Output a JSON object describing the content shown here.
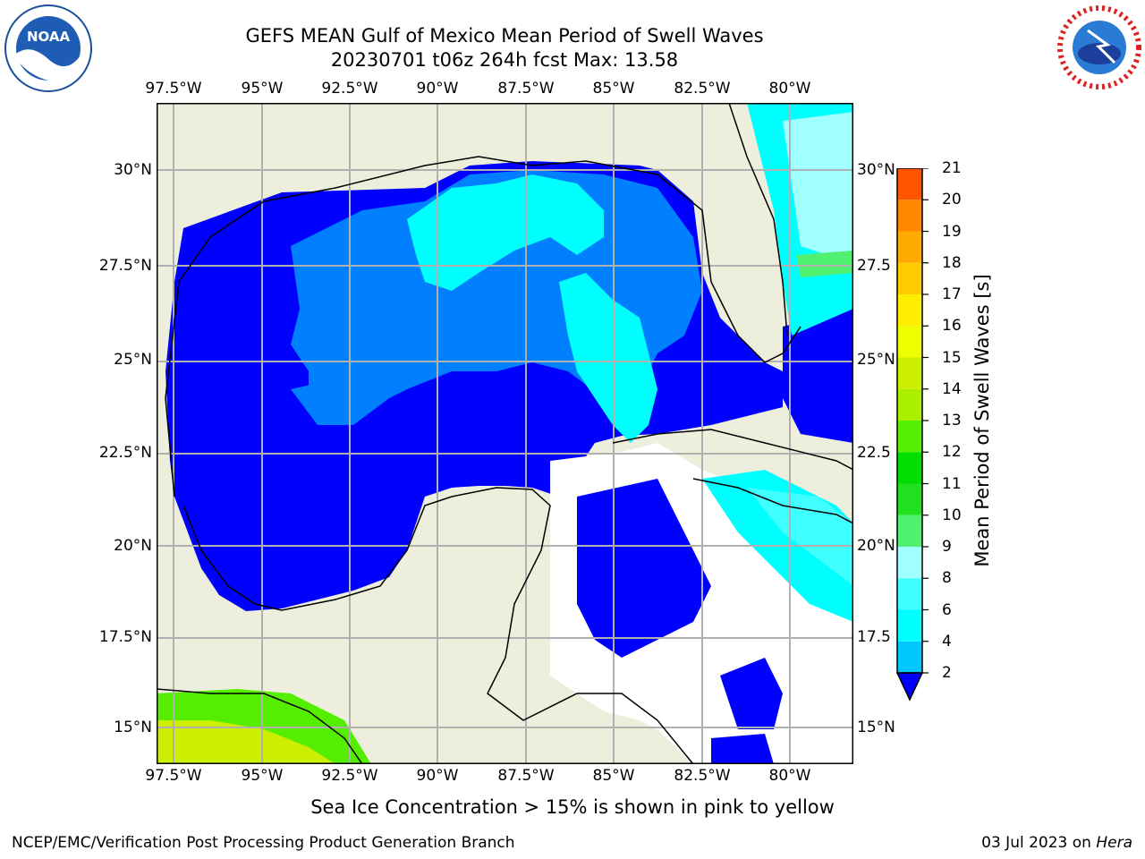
{
  "title": {
    "line1": "GEFS MEAN Gulf of Mexico Mean Period of Swell Waves",
    "line2": "20230701 t06z 264h fcst   Max: 13.58"
  },
  "map": {
    "lon_labels_top": [
      "97.5°W",
      "95°W",
      "92.5°W",
      "90°W",
      "87.5°W",
      "85°W",
      "82.5°W",
      "80°W"
    ],
    "lon_labels_bottom": [
      "97.5°W",
      "95°W",
      "92.5°W",
      "90°W",
      "87.5°W",
      "85°W",
      "82.5°W",
      "80°W"
    ],
    "lat_labels_left": [
      "30°N",
      "27.5°N",
      "25°N",
      "22.5°N",
      "20°N",
      "17.5°N",
      "15°N"
    ],
    "lat_labels_right": [
      "30°N",
      "27.5",
      "25°N",
      "22.5",
      "20°N",
      "17.5",
      "15°N"
    ],
    "land_color": "#eeeedd",
    "ocean_color_dominant": "#0000ff"
  },
  "colorbar": {
    "label": "Mean Period of Swell Waves [s]",
    "ticks": [
      "2",
      "4",
      "6",
      "8",
      "9",
      "10",
      "11",
      "12",
      "13",
      "14",
      "15",
      "16",
      "17",
      "18",
      "19",
      "20",
      "21"
    ],
    "colors": [
      "#0050ff",
      "#00c8ff",
      "#00ffff",
      "#40ffff",
      "#a0ffff",
      "#50f070",
      "#20e020",
      "#00dd00",
      "#55ee00",
      "#aaee00",
      "#ccee00",
      "#eeff00",
      "#ffee00",
      "#ffcc00",
      "#ffaa00",
      "#ff8800",
      "#ff5500",
      "#ff2200"
    ]
  },
  "footer": {
    "note": "Sea Ice Concentration > 15% is shown in pink to yellow",
    "credit": "NCEP/EMC/Verification Post Processing Product Generation Branch",
    "date": "03 Jul 2023 on ",
    "machine": "Hera"
  },
  "logos": {
    "noaa": "NOAA",
    "nws": "NATIONAL WEATHER SERVICE"
  }
}
